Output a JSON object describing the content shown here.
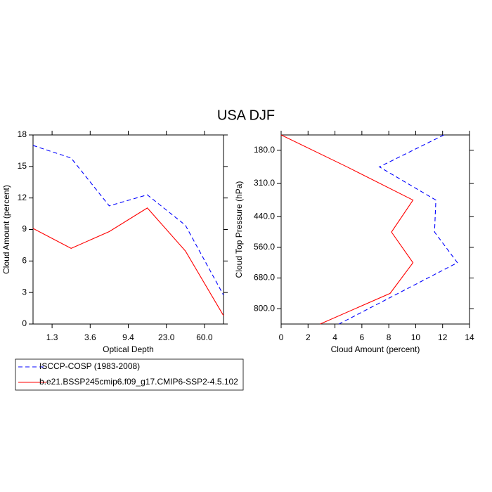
{
  "chart_data": [
    {
      "type": "line",
      "title": "USA DJF",
      "x_label": "Optical Depth",
      "y_label": "Cloud Amount (percent)",
      "x": [
        0,
        1,
        2,
        3,
        4,
        5
      ],
      "xlim": [
        0,
        5
      ],
      "xticks": [
        {
          "value": 0.5,
          "label": "1.3"
        },
        {
          "value": 1.5,
          "label": "3.6"
        },
        {
          "value": 2.5,
          "label": "9.4"
        },
        {
          "value": 3.5,
          "label": "23.0"
        },
        {
          "value": 4.5,
          "label": "60.0"
        }
      ],
      "ylim": [
        0,
        18
      ],
      "yticks": [
        0,
        3,
        6,
        9,
        12,
        15,
        18
      ],
      "series": [
        {
          "name": "ISCCP-COSP (1983-2008)",
          "color": "#0000ff",
          "dash": true,
          "values": [
            17.0,
            15.8,
            11.25,
            12.3,
            9.4,
            2.75
          ]
        },
        {
          "name": "b.e21.BSSP245cmip6.f09_g17.CMIP6-SSP2-4.5.102",
          "color": "#ff0000",
          "dash": false,
          "values": [
            9.1,
            7.2,
            8.8,
            11.05,
            6.95,
            0.8
          ]
        }
      ]
    },
    {
      "type": "profile",
      "x_label": "Cloud Amount (percent)",
      "y_label": "Cloud Top Pressure (hPa)",
      "y": [
        120,
        245,
        375,
        500,
        620,
        740,
        860
      ],
      "ylim": [
        120,
        860
      ],
      "y_inverted": true,
      "yticks": [
        {
          "value": 180,
          "label": "180.0"
        },
        {
          "value": 310,
          "label": "310.0"
        },
        {
          "value": 440,
          "label": "440.0"
        },
        {
          "value": 560,
          "label": "560.0"
        },
        {
          "value": 680,
          "label": "680.0"
        },
        {
          "value": 800,
          "label": "800.0"
        }
      ],
      "xlim": [
        0,
        14
      ],
      "xticks": [
        0,
        2,
        4,
        6,
        8,
        10,
        12,
        14
      ],
      "series": [
        {
          "color": "#0000ff",
          "dash": true,
          "values": [
            12.1,
            7.3,
            11.5,
            11.4,
            13.1,
            8.7,
            4.3
          ]
        },
        {
          "color": "#ff0000",
          "dash": false,
          "values": [
            0,
            4.9,
            9.8,
            8.2,
            9.8,
            8.1,
            2.9
          ]
        }
      ]
    }
  ]
}
